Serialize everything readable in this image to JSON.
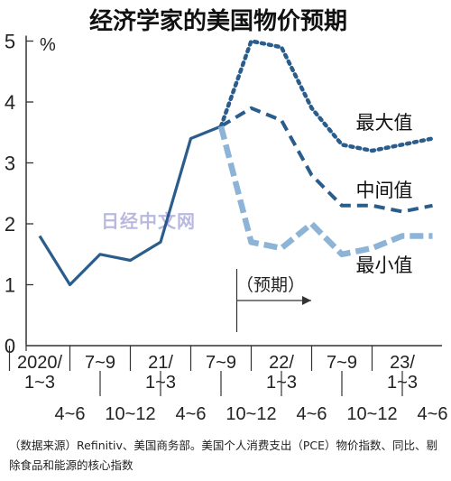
{
  "chart_data": {
    "type": "line",
    "title": "经济学家的美国物价预期",
    "unit_label": "%",
    "ylim": [
      0,
      5
    ],
    "yticks": [
      0,
      1,
      2,
      3,
      4,
      5
    ],
    "x_categories": [
      "2020/1~3",
      "4~6",
      "7~9",
      "10~12",
      "21/1~3",
      "4~6",
      "7~9",
      "10~12",
      "22/1~3",
      "4~6",
      "7~9",
      "10~12",
      "23/1~3",
      "4~6"
    ],
    "x_tick_labels": [
      {
        "lines": [
          "2020/",
          "1~3"
        ],
        "row": "upper"
      },
      {
        "lines": [
          "4~6"
        ],
        "row": "lower"
      },
      {
        "lines": [
          "7~9"
        ],
        "row": "upper"
      },
      {
        "lines": [
          "10~12"
        ],
        "row": "lower"
      },
      {
        "lines": [
          "21/",
          "1~3"
        ],
        "row": "upper"
      },
      {
        "lines": [
          "4~6"
        ],
        "row": "lower"
      },
      {
        "lines": [
          "7~9"
        ],
        "row": "upper"
      },
      {
        "lines": [
          "10~12"
        ],
        "row": "lower"
      },
      {
        "lines": [
          "22/",
          "1~3"
        ],
        "row": "upper"
      },
      {
        "lines": [
          "4~6"
        ],
        "row": "lower"
      },
      {
        "lines": [
          "7~9"
        ],
        "row": "upper"
      },
      {
        "lines": [
          "10~12"
        ],
        "row": "lower"
      },
      {
        "lines": [
          "23/",
          "1~3"
        ],
        "row": "upper"
      },
      {
        "lines": [
          "4~6"
        ],
        "row": "lower"
      }
    ],
    "forecast_label": "（预期）",
    "forecast_start_index": 7,
    "series": [
      {
        "key": "actual",
        "style": "solid",
        "color": "#2a5d8c",
        "points": [
          [
            0,
            1.8
          ],
          [
            1,
            1.0
          ],
          [
            2,
            1.5
          ],
          [
            3,
            1.4
          ],
          [
            4,
            1.7
          ],
          [
            5,
            3.4
          ],
          [
            6,
            3.6
          ]
        ]
      },
      {
        "key": "max",
        "name": "最大值",
        "style": "dotted",
        "color": "#2a5d8c",
        "points": [
          [
            6,
            3.6
          ],
          [
            7,
            5.0
          ],
          [
            8,
            4.9
          ],
          [
            9,
            3.9
          ],
          [
            10,
            3.3
          ],
          [
            11,
            3.2
          ],
          [
            12,
            3.3
          ],
          [
            13,
            3.4
          ]
        ]
      },
      {
        "key": "mid",
        "name": "中间值",
        "style": "dashed",
        "color": "#2a5d8c",
        "points": [
          [
            6,
            3.6
          ],
          [
            7,
            3.9
          ],
          [
            8,
            3.7
          ],
          [
            9,
            2.8
          ],
          [
            10,
            2.3
          ],
          [
            11,
            2.3
          ],
          [
            12,
            2.2
          ],
          [
            13,
            2.3
          ]
        ]
      },
      {
        "key": "min",
        "name": "最小值",
        "style": "dashed-light",
        "color": "#8db4d6",
        "points": [
          [
            6,
            3.6
          ],
          [
            7,
            1.7
          ],
          [
            8,
            1.6
          ],
          [
            9,
            2.0
          ],
          [
            10,
            1.5
          ],
          [
            11,
            1.6
          ],
          [
            12,
            1.8
          ],
          [
            13,
            1.8
          ]
        ]
      }
    ]
  },
  "watermark": "日经中文网",
  "source_note": "（数据来源）Refinitiv、美国商务部。美国个人消费支出（PCE）物价指数、同比、剔除食品和能源的核心指数"
}
